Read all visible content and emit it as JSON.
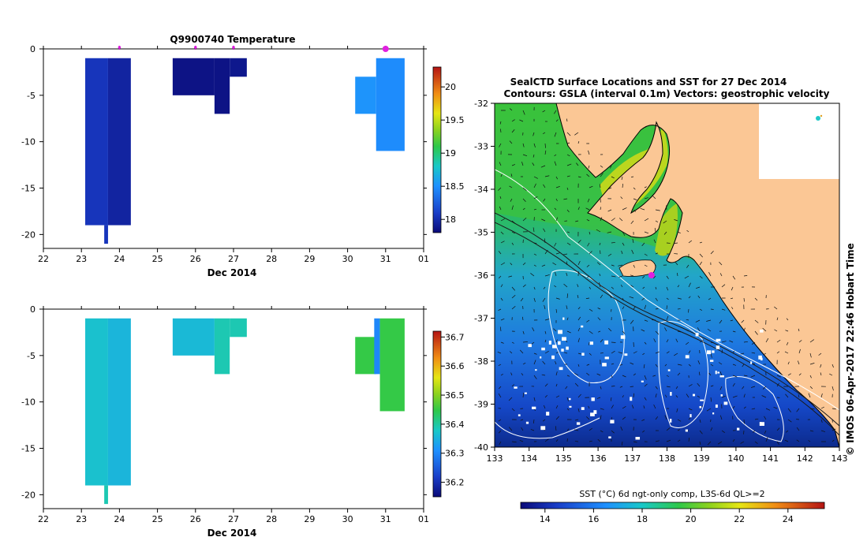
{
  "chart_data": [
    {
      "type": "heatmap",
      "title": "Q9900740  Temperature",
      "xlabel": "Dec 2014",
      "ylabel": "",
      "x_tick_labels": [
        "22",
        "23",
        "24",
        "25",
        "26",
        "27",
        "28",
        "29",
        "30",
        "31",
        "01"
      ],
      "y_tick_labels": [
        "0",
        "-5",
        "-10",
        "-15",
        "-20"
      ],
      "xlim": [
        22,
        32
      ],
      "ylim": [
        -21.5,
        0
      ],
      "colorbar": {
        "min": 17.8,
        "max": 20.3,
        "tick_labels": [
          "18",
          "18.5",
          "19",
          "19.5",
          "20"
        ]
      },
      "markers_x": [
        24.0,
        26.0,
        27.0,
        31.0
      ],
      "cells": [
        {
          "x0": 23.1,
          "x1": 23.7,
          "y0": -1,
          "y1": -19,
          "v": 18.05
        },
        {
          "x0": 23.7,
          "x1": 24.3,
          "y0": -1,
          "y1": -19,
          "v": 17.95
        },
        {
          "x0": 23.6,
          "x1": 23.7,
          "y0": -19,
          "y1": -21,
          "v": 18.05
        },
        {
          "x0": 25.4,
          "x1": 26.5,
          "y0": -1,
          "y1": -5,
          "v": 17.85
        },
        {
          "x0": 26.5,
          "x1": 26.9,
          "y0": -1,
          "y1": -7,
          "v": 17.85
        },
        {
          "x0": 26.9,
          "x1": 27.35,
          "y0": -1,
          "y1": -3,
          "v": 17.88
        },
        {
          "x0": 30.2,
          "x1": 30.75,
          "y0": -3,
          "y1": -7,
          "v": 18.52
        },
        {
          "x0": 30.75,
          "x1": 31.5,
          "y0": -1,
          "y1": -11,
          "v": 18.48
        }
      ]
    },
    {
      "type": "heatmap",
      "title": "",
      "xlabel": "Dec 2014",
      "ylabel": "",
      "x_tick_labels": [
        "22",
        "23",
        "24",
        "25",
        "26",
        "27",
        "28",
        "29",
        "30",
        "31",
        "01"
      ],
      "y_tick_labels": [
        "0",
        "-5",
        "-10",
        "-15",
        "-20"
      ],
      "xlim": [
        22,
        32
      ],
      "ylim": [
        -21.5,
        0
      ],
      "colorbar": {
        "min": 36.15,
        "max": 36.72,
        "tick_labels": [
          "36.2",
          "36.3",
          "36.4",
          "36.5",
          "36.6",
          "36.7"
        ]
      },
      "cells": [
        {
          "x0": 23.1,
          "x1": 23.7,
          "y0": -1,
          "y1": -19,
          "v": 36.37
        },
        {
          "x0": 23.7,
          "x1": 24.3,
          "y0": -1,
          "y1": -19,
          "v": 36.355
        },
        {
          "x0": 23.6,
          "x1": 23.7,
          "y0": -19,
          "y1": -21,
          "v": 36.39
        },
        {
          "x0": 25.4,
          "x1": 26.5,
          "y0": -1,
          "y1": -5,
          "v": 36.36
        },
        {
          "x0": 26.5,
          "x1": 26.9,
          "y0": -1,
          "y1": -7,
          "v": 36.39
        },
        {
          "x0": 26.9,
          "x1": 27.35,
          "y0": -1,
          "y1": -3,
          "v": 36.39
        },
        {
          "x0": 30.2,
          "x1": 30.75,
          "y0": -3,
          "y1": -7,
          "v": 36.45
        },
        {
          "x0": 30.7,
          "x1": 30.85,
          "y0": -1,
          "y1": -7,
          "v": 36.3
        },
        {
          "x0": 30.85,
          "x1": 31.5,
          "y0": -1,
          "y1": -11,
          "v": 36.45
        }
      ]
    },
    {
      "type": "map",
      "title_line1": "SealCTD Surface Locations and SST for 27 Dec 2014",
      "title_line2": "Contours: GSLA (interval 0.1m) Vectors: geostrophic velocity",
      "lon_range": [
        133,
        143
      ],
      "lat_range": [
        -40,
        -32
      ],
      "x_tick_labels": [
        "133",
        "134",
        "135",
        "136",
        "137",
        "138",
        "139",
        "140",
        "141",
        "142",
        "143"
      ],
      "y_tick_labels": [
        "-32",
        "-33",
        "-34",
        "-35",
        "-36",
        "-37",
        "-38",
        "-39",
        "-40"
      ],
      "side_label": "© IMOS 06-Apr-2017 22:46 Hobart Time",
      "colorbar": {
        "label": "SST (°C) 6d ngt-only comp, L3S-6d QL>=2",
        "min": 13,
        "max": 25.5,
        "tick_labels": [
          "14",
          "16",
          "18",
          "20",
          "22",
          "24"
        ]
      },
      "seal_location": {
        "lon": 137.55,
        "lat": -36.0
      }
    }
  ]
}
